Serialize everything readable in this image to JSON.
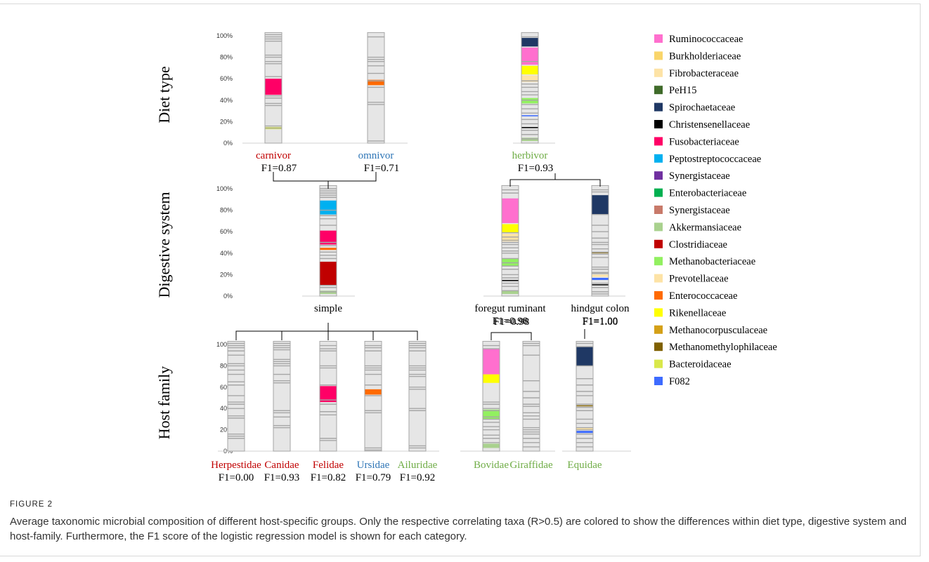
{
  "figure": {
    "label": "FIGURE 2",
    "caption": "Average taxonomic microbial composition of different host-specific groups. Only the respective correlating taxa (R>0.5) are colored to show the differences within diet type, digestive system and host-family. Furthermore, the F1 score of the logistic regression model is shown for each category."
  },
  "colors": {
    "Ruminococcaceae": "#ff6fce",
    "Burkholderiaceae": "#f9d56a",
    "Fibrobacteraceae": "#fde3a6",
    "PeH15": "#3f6b2a",
    "Spirochaetaceae": "#1f3864",
    "Christensenellaceae": "#000000",
    "Fusobacteriaceae": "#ff0066",
    "Peptostreptococcaceae": "#00b0f0",
    "Synergistaceae": "#7030a0",
    "Enterobacteriaceae": "#00b050",
    "Synergistaceae_2": "#c87a6a",
    "Akkermansiaceae": "#a9d18e",
    "Clostridiaceae": "#c00000",
    "Methanobacteriaceae": "#92f060",
    "Prevotellaceae": "#fde3a6",
    "Enterococcaceae": "#ff6a00",
    "Rikenellaceae": "#ffff00",
    "Methanocorpusculaceae": "#d4a017",
    "Methanomethylophilaceae": "#7f6000",
    "Bacteroidaceae": "#d9e84a",
    "F082": "#3d6bff",
    "base": "#e6e6e6",
    "line": "#a6a6a6",
    "red_label": "#c00000",
    "blue_label": "#2e75b6",
    "green_label": "#70ad47"
  },
  "chart_data": {
    "type": "bar",
    "ytick_labels": [
      "0%",
      "20%",
      "40%",
      "60%",
      "80%",
      "100%"
    ],
    "ylim": [
      0,
      100
    ],
    "row_labels": [
      "Diet type",
      "Digestive system",
      "Host family"
    ],
    "legend": [
      {
        "name": "Ruminococcaceae",
        "color_key": "Ruminococcaceae"
      },
      {
        "name": "Burkholderiaceae",
        "color_key": "Burkholderiaceae"
      },
      {
        "name": "Fibrobacteraceae",
        "color_key": "Fibrobacteraceae"
      },
      {
        "name": "PeH15",
        "color_key": "PeH15"
      },
      {
        "name": "Spirochaetaceae",
        "color_key": "Spirochaetaceae"
      },
      {
        "name": "Christensenellaceae",
        "color_key": "Christensenellaceae"
      },
      {
        "name": "Fusobacteriaceae",
        "color_key": "Fusobacteriaceae"
      },
      {
        "name": "Peptostreptococcaceae",
        "color_key": "Peptostreptococcaceae"
      },
      {
        "name": "Synergistaceae",
        "color_key": "Synergistaceae"
      },
      {
        "name": "Enterobacteriaceae",
        "color_key": "Enterobacteriaceae"
      },
      {
        "name": "Synergistaceae",
        "color_key": "Synergistaceae_2"
      },
      {
        "name": "Akkermansiaceae",
        "color_key": "Akkermansiaceae"
      },
      {
        "name": "Clostridiaceae",
        "color_key": "Clostridiaceae"
      },
      {
        "name": "Methanobacteriaceae",
        "color_key": "Methanobacteriaceae"
      },
      {
        "name": "Prevotellaceae",
        "color_key": "Prevotellaceae"
      },
      {
        "name": "Enterococcaceae",
        "color_key": "Enterococcaceae"
      },
      {
        "name": "Rikenellaceae",
        "color_key": "Rikenellaceae"
      },
      {
        "name": "Methanocorpusculaceae",
        "color_key": "Methanocorpusculaceae"
      },
      {
        "name": "Methanomethylophilaceae",
        "color_key": "Methanomethylophilaceae"
      },
      {
        "name": "Bacteroidaceae",
        "color_key": "Bacteroidaceae"
      },
      {
        "name": "F082",
        "color_key": "F082"
      }
    ],
    "bars": [
      {
        "id": "carnivor",
        "label": "carnivor",
        "label_color": "red_label",
        "f1": "F1=0.87",
        "lines": [
          14,
          16,
          35,
          37,
          42,
          44,
          62,
          74,
          76,
          80,
          82,
          95,
          97,
          99,
          101
        ],
        "segments": [
          {
            "from": 45,
            "to": 60,
            "color_key": "Fusobacteriaceae"
          },
          {
            "from": 13,
            "to": 15,
            "color_key": "Bacteroidaceae"
          }
        ]
      },
      {
        "id": "omnivor",
        "label": "omnivor",
        "label_color": "blue_label",
        "f1": "F1=0.71",
        "lines": [
          2,
          36,
          38,
          52,
          58,
          65,
          72,
          76,
          78,
          80,
          99
        ],
        "segments": [
          {
            "from": 54,
            "to": 59,
            "color_key": "Enterococcaceae"
          }
        ]
      },
      {
        "id": "herbivor",
        "label": "herbivor",
        "label_color": "green_label",
        "f1": "F1=0.93",
        "lines": [
          4,
          8,
          12,
          18,
          22,
          28,
          32,
          36,
          40,
          45,
          48,
          52,
          55,
          58,
          76,
          99
        ],
        "segments": [
          {
            "from": 90,
            "to": 98,
            "color_key": "Spirochaetaceae"
          },
          {
            "from": 73,
            "to": 89,
            "color_key": "Ruminococcaceae"
          },
          {
            "from": 64,
            "to": 72,
            "color_key": "Rikenellaceae"
          },
          {
            "from": 57,
            "to": 63,
            "color_key": "Fibrobacteraceae"
          },
          {
            "from": 37,
            "to": 42,
            "color_key": "Methanobacteriaceae"
          },
          {
            "from": 25,
            "to": 26,
            "color_key": "F082"
          },
          {
            "from": 14,
            "to": 15,
            "color_key": "Christensenellaceae"
          },
          {
            "from": 2,
            "to": 5,
            "color_key": "Akkermansiaceae"
          }
        ]
      },
      {
        "id": "simple",
        "label": "simple",
        "label_color": "black",
        "f1": "",
        "lines": [
          4,
          8,
          10,
          35,
          38,
          41,
          47,
          50,
          66,
          72,
          75,
          80,
          92,
          94,
          96,
          98,
          100
        ],
        "segments": [
          {
            "from": 10,
            "to": 32,
            "color_key": "Clostridiaceae"
          },
          {
            "from": 43,
            "to": 45,
            "color_key": "Enterococcaceae"
          },
          {
            "from": 48,
            "to": 61,
            "color_key": "Fusobacteriaceae"
          },
          {
            "from": 76,
            "to": 89,
            "color_key": "Peptostreptococcaceae"
          },
          {
            "from": 2,
            "to": 5,
            "color_key": "Akkermansiaceae"
          }
        ]
      },
      {
        "id": "foregut",
        "label": "foregut ruminant",
        "label_color": "black",
        "f1": "F1=0.98",
        "lines": [
          5,
          9,
          12,
          17,
          20,
          25,
          28,
          31,
          35,
          40,
          42,
          45,
          48,
          50,
          52,
          55,
          59,
          96,
          99
        ],
        "segments": [
          {
            "from": 68,
            "to": 91,
            "color_key": "Ruminococcaceae"
          },
          {
            "from": 59,
            "to": 67,
            "color_key": "Rikenellaceae"
          },
          {
            "from": 51,
            "to": 58,
            "color_key": "Fibrobacteraceae"
          },
          {
            "from": 28,
            "to": 35,
            "color_key": "Methanobacteriaceae"
          },
          {
            "from": 14,
            "to": 15,
            "color_key": "Christensenellaceae"
          },
          {
            "from": 2,
            "to": 5,
            "color_key": "Akkermansiaceae"
          }
        ]
      },
      {
        "id": "hindgut",
        "label": "hindgut colon",
        "label_color": "black",
        "f1": "F1=1.00",
        "lines": [
          2,
          4,
          8,
          12,
          21,
          22,
          25,
          27,
          36,
          39,
          41,
          44,
          48,
          50,
          54,
          60,
          66,
          76,
          97,
          99
        ],
        "segments": [
          {
            "from": 76,
            "to": 94,
            "color_key": "Spirochaetaceae"
          },
          {
            "from": 40,
            "to": 41,
            "color_key": "Methanomethylophilaceae"
          },
          {
            "from": 18,
            "to": 20,
            "color_key": "Fibrobacteraceae"
          },
          {
            "from": 15,
            "to": 17,
            "color_key": "F082"
          },
          {
            "from": 10,
            "to": 11,
            "color_key": "Christensenellaceae"
          }
        ]
      },
      {
        "id": "herpestidae",
        "label": "Herpestidae",
        "label_color": "red_label",
        "f1": "F1=0.00",
        "lines": [
          12,
          14,
          16,
          31,
          33,
          40,
          44,
          46,
          52,
          62,
          65,
          72,
          76,
          80,
          82,
          90,
          94,
          97,
          99,
          101
        ],
        "segments": []
      },
      {
        "id": "canidae",
        "label": "Canidae",
        "label_color": "red_label",
        "f1": "F1=0.93",
        "lines": [
          22,
          24,
          32,
          36,
          38,
          64,
          66,
          72,
          80,
          82,
          84,
          86,
          95,
          97,
          99,
          101
        ],
        "segments": []
      },
      {
        "id": "felidae",
        "label": "Felidae",
        "label_color": "red_label",
        "f1": "F1=0.82",
        "lines": [
          10,
          12,
          34,
          37,
          44,
          48,
          62,
          78,
          80,
          94,
          96,
          99
        ],
        "segments": [
          {
            "from": 46,
            "to": 61,
            "color_key": "Fusobacteriaceae"
          }
        ]
      },
      {
        "id": "ursidae",
        "label": "Ursidae",
        "label_color": "blue_label",
        "f1": "F1=0.79",
        "lines": [
          1,
          3,
          36,
          38,
          52,
          62,
          72,
          76,
          78,
          80,
          94,
          97,
          99
        ],
        "segments": [
          {
            "from": 53,
            "to": 58,
            "color_key": "Enterococcaceae"
          }
        ]
      },
      {
        "id": "ailuridae",
        "label": "Ailuridae",
        "label_color": "green_label",
        "f1": "F1=0.92",
        "lines": [
          3,
          5,
          38,
          40,
          58,
          60,
          70,
          72,
          76,
          78,
          80,
          94,
          97,
          99,
          101
        ],
        "segments": []
      },
      {
        "id": "bovidae",
        "label": "Bovidae",
        "label_color": "green_label",
        "f1": "",
        "lines": [
          8,
          12,
          15,
          20,
          23,
          27,
          30,
          32,
          38,
          40,
          44,
          46,
          96,
          99
        ],
        "segments": [
          {
            "from": 72,
            "to": 96,
            "color_key": "Ruminococcaceae"
          },
          {
            "from": 64,
            "to": 72,
            "color_key": "Rikenellaceae"
          },
          {
            "from": 30,
            "to": 39,
            "color_key": "Methanobacteriaceae"
          },
          {
            "from": 3,
            "to": 7,
            "color_key": "Akkermansiaceae"
          }
        ]
      },
      {
        "id": "giraffidae",
        "label": "Giraffidae",
        "label_color": "green_label",
        "f1": "",
        "lines": [
          4,
          8,
          12,
          16,
          18,
          20,
          22,
          30,
          33,
          36,
          42,
          44,
          50,
          56,
          66,
          90,
          99,
          101
        ],
        "segments": []
      },
      {
        "id": "equidae",
        "label": "Equidae",
        "label_color": "green_label",
        "f1": "",
        "lines": [
          4,
          8,
          12,
          16,
          20,
          22,
          26,
          30,
          38,
          41,
          44,
          52,
          56,
          62,
          68,
          80,
          98,
          101
        ],
        "segments": [
          {
            "from": 80,
            "to": 98,
            "color_key": "Spirochaetaceae"
          },
          {
            "from": 42,
            "to": 43,
            "color_key": "Methanomethylophilaceae"
          },
          {
            "from": 20,
            "to": 22,
            "color_key": "Fibrobacteraceae"
          },
          {
            "from": 17,
            "to": 19,
            "color_key": "F082"
          }
        ]
      }
    ],
    "group_f1": {
      "foregut_bovidae_giraffidae": "F1=0.98",
      "hindgut_equidae": "F1=1.00"
    }
  }
}
